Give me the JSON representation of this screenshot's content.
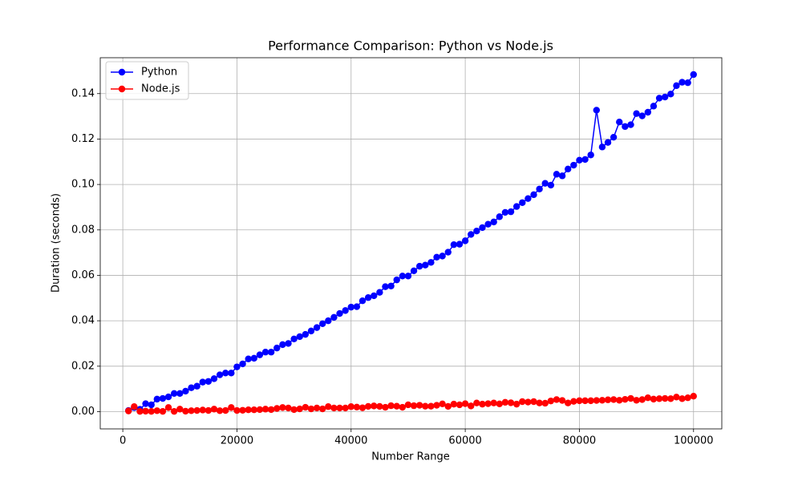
{
  "chart_data": {
    "type": "line",
    "title": "Performance Comparison: Python vs Node.js",
    "x_label": "Number Range",
    "y_label": "Duration (seconds)",
    "x": [
      1000,
      2000,
      3000,
      4000,
      5000,
      6000,
      7000,
      8000,
      9000,
      10000,
      11000,
      12000,
      13000,
      14000,
      15000,
      16000,
      17000,
      18000,
      19000,
      20000,
      21000,
      22000,
      23000,
      24000,
      25000,
      26000,
      27000,
      28000,
      29000,
      30000,
      31000,
      32000,
      33000,
      34000,
      35000,
      36000,
      37000,
      38000,
      39000,
      40000,
      41000,
      42000,
      43000,
      44000,
      45000,
      46000,
      47000,
      48000,
      49000,
      50000,
      51000,
      52000,
      53000,
      54000,
      55000,
      56000,
      57000,
      58000,
      59000,
      60000,
      61000,
      62000,
      63000,
      64000,
      65000,
      66000,
      67000,
      68000,
      69000,
      70000,
      71000,
      72000,
      73000,
      74000,
      75000,
      76000,
      77000,
      78000,
      79000,
      80000,
      81000,
      82000,
      83000,
      84000,
      85000,
      86000,
      87000,
      88000,
      89000,
      90000,
      91000,
      92000,
      93000,
      94000,
      95000,
      96000,
      97000,
      98000,
      99000,
      100000
    ],
    "series": [
      {
        "name": "Python",
        "color": "#0000ff",
        "values": [
          0.0005,
          0.0018,
          0.001,
          0.0035,
          0.003,
          0.0055,
          0.0058,
          0.0065,
          0.008,
          0.008,
          0.009,
          0.0105,
          0.0112,
          0.013,
          0.0133,
          0.0145,
          0.0162,
          0.017,
          0.017,
          0.0197,
          0.021,
          0.0232,
          0.0235,
          0.025,
          0.0262,
          0.0262,
          0.028,
          0.0295,
          0.03,
          0.032,
          0.033,
          0.034,
          0.0355,
          0.037,
          0.0387,
          0.04,
          0.0415,
          0.0432,
          0.0445,
          0.046,
          0.0462,
          0.0488,
          0.0502,
          0.051,
          0.0525,
          0.055,
          0.0553,
          0.058,
          0.0597,
          0.0597,
          0.062,
          0.064,
          0.0645,
          0.0657,
          0.068,
          0.0685,
          0.0702,
          0.0735,
          0.0737,
          0.0752,
          0.078,
          0.0795,
          0.081,
          0.0825,
          0.0835,
          0.0858,
          0.0877,
          0.088,
          0.0903,
          0.092,
          0.0938,
          0.0955,
          0.098,
          0.1005,
          0.0997,
          0.1045,
          0.1038,
          0.1068,
          0.1085,
          0.1107,
          0.111,
          0.113,
          0.1327,
          0.1165,
          0.1185,
          0.1208,
          0.1275,
          0.1255,
          0.1263,
          0.1312,
          0.1302,
          0.1318,
          0.1345,
          0.138,
          0.1385,
          0.1398,
          0.1435,
          0.145,
          0.1448,
          0.1484
        ]
      },
      {
        "name": "Node.js",
        "color": "#ff0000",
        "values": [
          0.0003,
          0.0022,
          0.0001,
          0.0002,
          0.0001,
          0.0004,
          0.0001,
          0.0018,
          0.0001,
          0.0011,
          0.0002,
          0.0004,
          0.0005,
          0.0007,
          0.0005,
          0.0011,
          0.0004,
          0.0005,
          0.0018,
          0.0005,
          0.0006,
          0.0008,
          0.0008,
          0.0009,
          0.0011,
          0.0009,
          0.0014,
          0.0018,
          0.0016,
          0.0009,
          0.0012,
          0.0019,
          0.0012,
          0.0016,
          0.0012,
          0.0022,
          0.0016,
          0.0016,
          0.0016,
          0.0022,
          0.002,
          0.0017,
          0.0023,
          0.0025,
          0.0023,
          0.0019,
          0.0026,
          0.0024,
          0.0019,
          0.003,
          0.0026,
          0.0028,
          0.0024,
          0.0024,
          0.0028,
          0.0034,
          0.0023,
          0.0033,
          0.003,
          0.0035,
          0.0025,
          0.0038,
          0.0033,
          0.0035,
          0.0038,
          0.0034,
          0.0041,
          0.0039,
          0.0033,
          0.0044,
          0.0042,
          0.0044,
          0.0038,
          0.0037,
          0.0047,
          0.0053,
          0.0049,
          0.0038,
          0.0045,
          0.0048,
          0.0048,
          0.0048,
          0.0049,
          0.005,
          0.0052,
          0.0053,
          0.005,
          0.0054,
          0.0058,
          0.005,
          0.0053,
          0.0061,
          0.0055,
          0.0057,
          0.0058,
          0.0057,
          0.0064,
          0.0057,
          0.0061,
          0.0068
        ]
      }
    ],
    "xlim": [
      -3950,
      104950
    ],
    "ylim": [
      -0.0076,
      0.1558
    ],
    "xticks": [
      0,
      20000,
      40000,
      60000,
      80000,
      100000
    ],
    "yticks": [
      {
        "value": 0,
        "label": "0.00"
      },
      0.02,
      0.04,
      0.06,
      0.08,
      {
        "value": 0.1,
        "label": "0.10"
      },
      0.12,
      0.14
    ],
    "grid": true,
    "legend": "upper-left"
  }
}
